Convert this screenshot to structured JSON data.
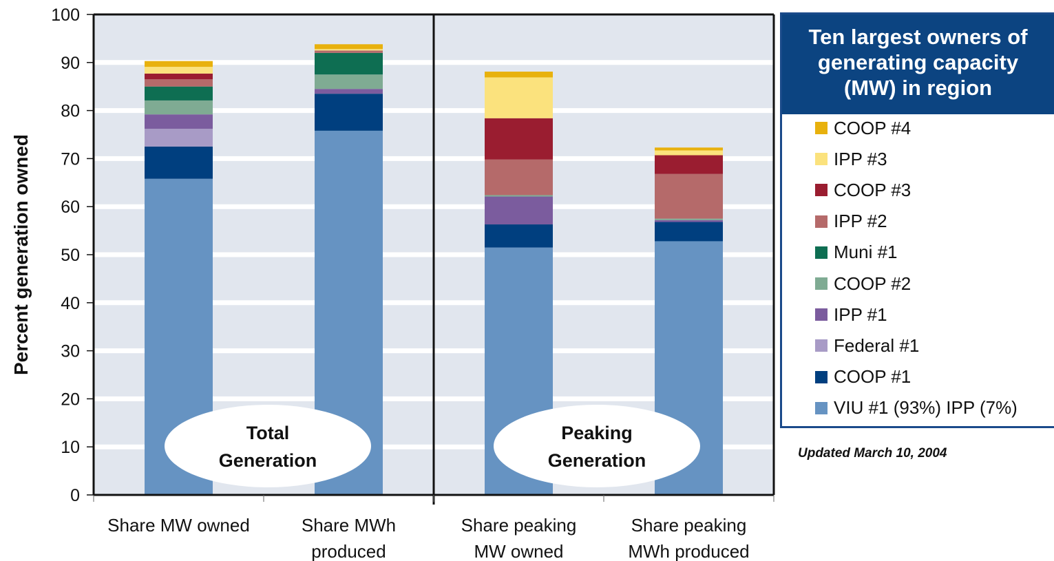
{
  "chart_data": {
    "type": "bar",
    "stacked": true,
    "ylabel": "Percent generation owned",
    "ylim": [
      0,
      100
    ],
    "yticks": [
      0,
      10,
      20,
      30,
      40,
      50,
      60,
      70,
      80,
      90,
      100
    ],
    "grid": true,
    "categories": [
      [
        "Share MW owned"
      ],
      [
        "Share MWh",
        "produced"
      ],
      [
        "Share peaking",
        "MW owned"
      ],
      [
        "Share peaking",
        "MWh produced"
      ]
    ],
    "groups": [
      {
        "label": [
          "Total",
          "Generation"
        ]
      },
      {
        "label": [
          "Peaking",
          "Generation"
        ]
      }
    ],
    "series": [
      {
        "name": "VIU #1 (93%) IPP (7%)",
        "color": "#6693c2",
        "values": [
          65.8,
          75.8,
          51.5,
          52.8
        ]
      },
      {
        "name": "COOP #1",
        "color": "#003f7f",
        "values": [
          6.7,
          7.7,
          4.8,
          4.0
        ]
      },
      {
        "name": "Federal #1",
        "color": "#a89bc6",
        "values": [
          3.7,
          0.0,
          0.0,
          0.0
        ]
      },
      {
        "name": "IPP #1",
        "color": "#7b5c9e",
        "values": [
          3.0,
          1.0,
          5.8,
          0.4
        ]
      },
      {
        "name": "COOP #2",
        "color": "#7fab93",
        "values": [
          2.9,
          3.0,
          0.3,
          0.3
        ]
      },
      {
        "name": "Muni #1",
        "color": "#0e6e52",
        "values": [
          2.9,
          4.5,
          0.0,
          0.0
        ]
      },
      {
        "name": "IPP #2",
        "color": "#b56a6a",
        "values": [
          1.5,
          0.5,
          7.4,
          9.3
        ]
      },
      {
        "name": "COOP #3",
        "color": "#9a1d30",
        "values": [
          1.2,
          0.0,
          8.6,
          3.9
        ]
      },
      {
        "name": "IPP #3",
        "color": "#fbe27d",
        "values": [
          1.4,
          0.3,
          8.5,
          1.0
        ]
      },
      {
        "name": "COOP #4",
        "color": "#e8b10d",
        "values": [
          1.2,
          1.0,
          1.2,
          0.6
        ]
      }
    ],
    "legend_position": "right"
  },
  "legend": {
    "title_lines": [
      "Ten largest owners of",
      "generating capacity",
      "(MW) in region"
    ],
    "order": [
      "COOP #4",
      "IPP #3",
      "COOP #3",
      "IPP #2",
      "Muni #1",
      "COOP #2",
      "IPP #1",
      "Federal #1",
      "COOP #1",
      "VIU #1 (93%) IPP (7%)"
    ]
  },
  "note": "Updated March 10, 2004"
}
